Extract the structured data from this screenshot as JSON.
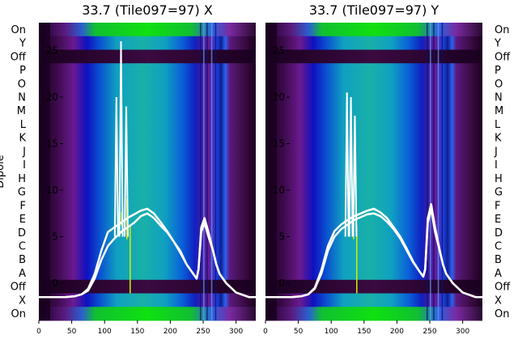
{
  "colors": {
    "bg_dark": "#2a0a30",
    "purple": "#7a1fa0",
    "blue": "#1020c0",
    "teal": "#10a0b0",
    "green": "#10d010",
    "trace": "#ffffff"
  },
  "chart_data": [
    {
      "type": "heatmap",
      "title": "33.7 (Tile097=97) X",
      "ylabel": "Dipole",
      "xlim": [
        0,
        330
      ],
      "xticks": [
        0,
        50,
        100,
        150,
        200,
        250,
        300
      ],
      "row_labels": [
        "On",
        "Y",
        "Off",
        "P",
        "O",
        "N",
        "M",
        "L",
        "K",
        "J",
        "I",
        "H",
        "G",
        "F",
        "E",
        "D",
        "C",
        "B",
        "A",
        "Off",
        "X",
        "On"
      ],
      "overlay_ylim": [
        -4,
        28
      ],
      "overlay_yticks": [
        0,
        5,
        10,
        15,
        20,
        25
      ],
      "series": [
        {
          "name": "",
          "x": [
            0,
            40,
            55,
            65,
            75,
            85,
            95,
            105,
            115,
            125,
            135,
            145,
            155,
            165,
            175,
            185,
            195,
            205,
            215,
            225,
            235,
            240,
            243,
            247,
            252,
            258,
            265,
            270,
            275,
            285,
            300,
            320,
            330
          ],
          "y": [
            -1.5,
            -1.5,
            -1.4,
            -1.2,
            -0.8,
            0.5,
            2.5,
            4.0,
            4.8,
            5.5,
            6.0,
            6.5,
            7.2,
            7.5,
            7.0,
            6.2,
            5.5,
            4.5,
            3.5,
            2.0,
            1.0,
            0.5,
            1.5,
            5.5,
            6.5,
            5.0,
            3.5,
            2.0,
            1.0,
            0.0,
            -1.0,
            -1.5,
            -1.5
          ]
        },
        {
          "name": "",
          "x": [
            0,
            40,
            55,
            65,
            75,
            85,
            95,
            105,
            115,
            125,
            135,
            145,
            155,
            165,
            175,
            185,
            195,
            205,
            215,
            225,
            235,
            240,
            243,
            247,
            252,
            258,
            265,
            270,
            275,
            285,
            300,
            320,
            330
          ],
          "y": [
            -1.5,
            -1.5,
            -1.4,
            -1.2,
            -0.6,
            1.0,
            3.5,
            5.5,
            6.0,
            6.5,
            7.0,
            7.4,
            7.8,
            8.0,
            7.5,
            6.6,
            5.6,
            4.5,
            3.3,
            2.0,
            1.0,
            0.5,
            1.5,
            6.0,
            7.0,
            5.5,
            3.5,
            2.0,
            1.0,
            0.0,
            -1.0,
            -1.5,
            -1.5
          ]
        }
      ],
      "spikes": [
        {
          "x": 118,
          "y": 20
        },
        {
          "x": 125,
          "y": 26
        },
        {
          "x": 133,
          "y": 19
        }
      ]
    },
    {
      "type": "heatmap",
      "title": "33.7 (Tile097=97) Y",
      "xlim": [
        0,
        330
      ],
      "xticks": [
        0,
        50,
        100,
        150,
        200,
        250,
        300
      ],
      "row_labels": [
        "On",
        "Y",
        "Off",
        "P",
        "O",
        "N",
        "M",
        "L",
        "K",
        "J",
        "I",
        "H",
        "G",
        "F",
        "E",
        "D",
        "C",
        "B",
        "A",
        "Off",
        "X",
        "On"
      ],
      "overlay_ylim": [
        -4,
        28
      ],
      "overlay_yticks": [
        0,
        5,
        10,
        15,
        20,
        25
      ],
      "series": [
        {
          "name": "",
          "x": [
            0,
            40,
            55,
            65,
            75,
            85,
            95,
            105,
            115,
            125,
            135,
            145,
            155,
            165,
            175,
            185,
            195,
            205,
            215,
            225,
            235,
            240,
            243,
            247,
            252,
            258,
            265,
            270,
            275,
            285,
            300,
            320,
            330
          ],
          "y": [
            -1.5,
            -1.5,
            -1.4,
            -1.2,
            -0.6,
            1.0,
            3.5,
            5.0,
            5.8,
            6.3,
            6.8,
            7.1,
            7.4,
            7.5,
            7.2,
            6.6,
            5.8,
            4.8,
            3.5,
            2.2,
            1.2,
            0.7,
            1.5,
            6.5,
            8.0,
            5.5,
            3.5,
            2.0,
            1.0,
            0.0,
            -1.0,
            -1.5,
            -1.5
          ]
        },
        {
          "name": "",
          "x": [
            0,
            40,
            55,
            65,
            75,
            85,
            95,
            105,
            115,
            125,
            135,
            145,
            155,
            165,
            175,
            185,
            195,
            205,
            215,
            225,
            235,
            240,
            243,
            247,
            252,
            258,
            265,
            270,
            275,
            285,
            300,
            320,
            330
          ],
          "y": [
            -1.5,
            -1.5,
            -1.4,
            -1.2,
            -0.5,
            1.4,
            4.0,
            5.6,
            6.3,
            6.8,
            7.2,
            7.5,
            7.8,
            8.0,
            7.6,
            7.0,
            6.0,
            5.0,
            3.7,
            2.3,
            1.2,
            0.7,
            1.5,
            7.0,
            8.5,
            6.0,
            3.6,
            2.0,
            1.0,
            0.0,
            -1.0,
            -1.5,
            -1.5
          ]
        }
      ],
      "spikes": [
        {
          "x": 124,
          "y": 20.5
        },
        {
          "x": 130,
          "y": 20
        },
        {
          "x": 136,
          "y": 18
        }
      ]
    }
  ]
}
